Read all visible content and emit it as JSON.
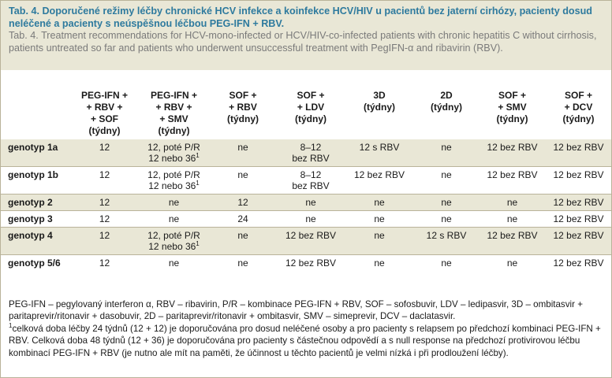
{
  "caption": {
    "title_cz": "Tab. 4. Doporučené režimy léčby chronické HCV infekce a koinfekce HCV/HIV u pacientů bez jaterní cirhózy, pacienty dosud neléčené a pacienty s neúspěšnou léčbou PEG-IFN + RBV.",
    "title_en": "Tab. 4. Treatment recommendations for HCV-mono-infected or HCV/HIV-co-infected patients with chronic hepatitis C without cirrhosis, patients untreated so far and patients who underwent unsuccessful treatment with PegIFN-α and ribavirin (RBV)."
  },
  "table": {
    "headers": [
      "",
      "PEG-IFN + + RBV + + SOF (týdny)",
      "PEG-IFN + + RBV + + SMV (týdny)",
      "SOF + + RBV (týdny)",
      "SOF + + LDV (týdny)",
      "3D (týdny)",
      "2D (týdny)",
      "SOF + + SMV (týdny)",
      "SOF + + DCV (týdny)"
    ],
    "header_lines": [
      [],
      [
        "PEG-IFN +",
        "+ RBV +",
        "+ SOF",
        "(týdny)"
      ],
      [
        "PEG-IFN +",
        "+ RBV +",
        "+ SMV",
        "(týdny)"
      ],
      [
        "SOF +",
        "+ RBV",
        "(týdny)"
      ],
      [
        "SOF +",
        "+ LDV",
        "(týdny)"
      ],
      [
        "3D",
        "(týdny)"
      ],
      [
        "2D",
        "(týdny)"
      ],
      [
        "SOF +",
        "+ SMV",
        "(týdny)"
      ],
      [
        "SOF +",
        "+ DCV",
        "(týdny)"
      ]
    ],
    "rows": [
      {
        "label": "genotyp 1a",
        "cells": [
          "12",
          "12, poté P/R 12 nebo 36",
          "ne",
          "8–12 bez RBV",
          "12 s RBV",
          "ne",
          "12 bez RBV",
          "12 bez RBV"
        ]
      },
      {
        "label": "genotyp 1b",
        "cells": [
          "12",
          "12, poté P/R 12 nebo 36",
          "ne",
          "8–12 bez RBV",
          "12 bez RBV",
          "ne",
          "12 bez RBV",
          "12 bez RBV"
        ]
      },
      {
        "label": "genotyp 2",
        "cells": [
          "12",
          "ne",
          "12",
          "ne",
          "ne",
          "ne",
          "ne",
          "12 bez RBV"
        ]
      },
      {
        "label": "genotyp 3",
        "cells": [
          "12",
          "ne",
          "24",
          "ne",
          "ne",
          "ne",
          "ne",
          "12 bez RBV"
        ]
      },
      {
        "label": "genotyp 4",
        "cells": [
          "12",
          "12, poté P/R 12 nebo 36",
          "ne",
          "12 bez RBV",
          "ne",
          "12 s RBV",
          "12 bez RBV",
          "12 bez RBV"
        ]
      },
      {
        "label": "genotyp 5/6",
        "cells": [
          "12",
          "ne",
          "ne",
          "12 bez RBV",
          "ne",
          "ne",
          "ne",
          "12 bez RBV"
        ]
      }
    ],
    "split_cells": {
      "pr_line1": "12, poté P/R",
      "pr_line2": "12 nebo 36",
      "pr_sup": "1",
      "ldv_line1": "8–12",
      "ldv_line2": "bez RBV"
    }
  },
  "footnote": {
    "abbreviations": "PEG-IFN – pegylovaný interferon α, RBV – ribavirin, P/R – kombinace PEG-IFN + RBV, SOF – sofosbuvir, LDV – ledipasvir, 3D – ombitasvir + paritaprevir/ritonavir + dasobuvir, 2D – paritaprevir/ritonavir + ombitasvir, SMV – simeprevir, DCV – daclatasvir.",
    "note_marker": "1",
    "note": "celková doba léčby 24 týdnů (12 + 12) je doporučována pro dosud neléčené osoby a pro pacienty s relapsem po předchozí kombinaci PEG-IFN + RBV. Celková doba 48 týdnů (12 + 36) je doporučována pro pacienty s částečnou odpovědí a s null response na předchozí protivirovou léčbu kombinací PEG-IFN + RBV (je nutno ale mít na paměti, že účinnost u těchto pacientů je velmi nízká i při prodloužení léčby)."
  }
}
